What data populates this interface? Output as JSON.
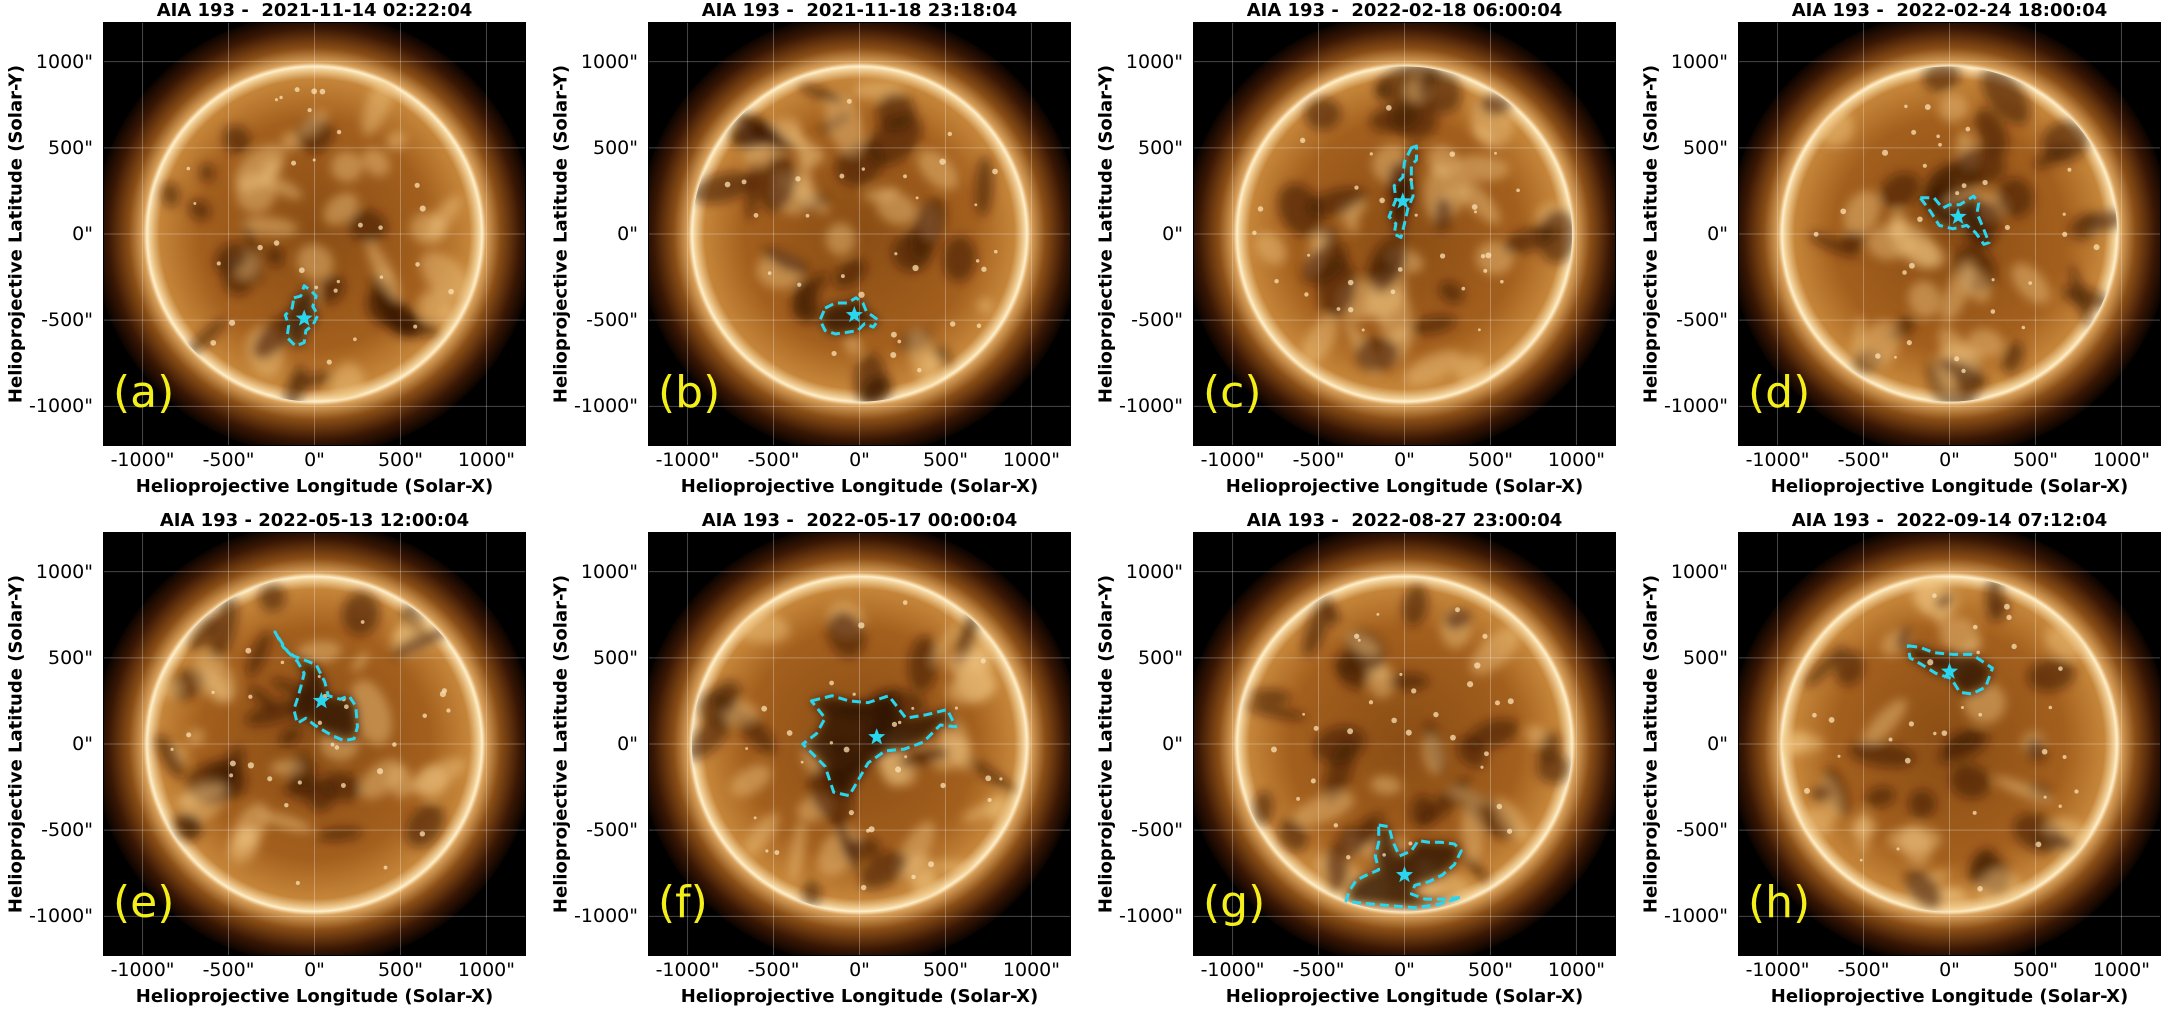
{
  "figure": {
    "ylabel": "Helioprojective Latitude (Solar-Y)",
    "xlabel": "Helioprojective Longitude (Solar-X)",
    "xticks": [
      "-1000\"",
      "-500\"",
      "0\"",
      "500\"",
      "1000\""
    ],
    "yticks": [
      "1000\"",
      "500\"",
      "0\"",
      "-500\"",
      "-1000\""
    ],
    "tick_values": [
      -1000,
      -500,
      0,
      500,
      1000
    ],
    "axis_range": [
      -1230,
      1230
    ],
    "sun_radius_arcsec": 975,
    "colors": {
      "contour": "#29d6f0",
      "panel_letter": "#f4ef18",
      "sun_bright": "#f6d9a6",
      "sun_mid": "#b06c24",
      "sun_dark": "#2a1000"
    },
    "panels": [
      {
        "id": "a",
        "title": "AIA 193 -  2021-11-14 02:22:04",
        "letter": "(a)",
        "star": [
          -60,
          -490
        ],
        "contour": [
          [
            -120,
            -370
          ],
          [
            -80,
            -360
          ],
          [
            -60,
            -300
          ],
          [
            -20,
            -330
          ],
          [
            10,
            -360
          ],
          [
            -10,
            -420
          ],
          [
            20,
            -470
          ],
          [
            -10,
            -530
          ],
          [
            -50,
            -560
          ],
          [
            -60,
            -630
          ],
          [
            -110,
            -650
          ],
          [
            -160,
            -600
          ],
          [
            -150,
            -530
          ],
          [
            -170,
            -470
          ],
          [
            -130,
            -430
          ],
          [
            -120,
            -370
          ]
        ]
      },
      {
        "id": "b",
        "title": "AIA 193 -  2021-11-18 23:18:04",
        "letter": "(b)",
        "star": [
          -30,
          -470
        ],
        "contour": [
          [
            -200,
            -430
          ],
          [
            -140,
            -400
          ],
          [
            -70,
            -400
          ],
          [
            -20,
            -370
          ],
          [
            20,
            -400
          ],
          [
            40,
            -450
          ],
          [
            110,
            -500
          ],
          [
            80,
            -540
          ],
          [
            30,
            -520
          ],
          [
            -10,
            -560
          ],
          [
            -70,
            -570
          ],
          [
            -140,
            -580
          ],
          [
            -200,
            -560
          ],
          [
            -230,
            -500
          ],
          [
            -200,
            -430
          ]
        ]
      },
      {
        "id": "c",
        "title": "AIA 193 -  2022-02-18 06:00:04",
        "letter": "(c)",
        "star": [
          -10,
          190
        ],
        "contour": [
          [
            40,
            500
          ],
          [
            70,
            510
          ],
          [
            70,
            430
          ],
          [
            40,
            400
          ],
          [
            40,
            300
          ],
          [
            50,
            220
          ],
          [
            20,
            150
          ],
          [
            0,
            60
          ],
          [
            -20,
            -20
          ],
          [
            -60,
            0
          ],
          [
            -50,
            60
          ],
          [
            -90,
            100
          ],
          [
            -50,
            200
          ],
          [
            -60,
            280
          ],
          [
            -10,
            330
          ],
          [
            0,
            420
          ],
          [
            40,
            500
          ]
        ]
      },
      {
        "id": "d",
        "title": "AIA 193 -  2022-02-24 18:00:04",
        "letter": "(d)",
        "star": [
          50,
          100
        ],
        "contour": [
          [
            -170,
            210
          ],
          [
            -90,
            210
          ],
          [
            -40,
            150
          ],
          [
            0,
            170
          ],
          [
            60,
            170
          ],
          [
            140,
            220
          ],
          [
            170,
            180
          ],
          [
            160,
            120
          ],
          [
            190,
            50
          ],
          [
            230,
            -50
          ],
          [
            200,
            -60
          ],
          [
            150,
            10
          ],
          [
            100,
            50
          ],
          [
            20,
            30
          ],
          [
            -60,
            50
          ],
          [
            -110,
            130
          ],
          [
            -170,
            210
          ]
        ]
      },
      {
        "id": "e",
        "title": "AIA 193 - 2022-05-13 12:00:04",
        "letter": "(e)",
        "star": [
          40,
          250
        ],
        "contour": [
          [
            -230,
            650
          ],
          [
            -180,
            560
          ],
          [
            -120,
            510
          ],
          [
            -40,
            480
          ],
          [
            10,
            460
          ],
          [
            60,
            360
          ],
          [
            80,
            280
          ],
          [
            150,
            260
          ],
          [
            200,
            280
          ],
          [
            240,
            220
          ],
          [
            250,
            100
          ],
          [
            230,
            30
          ],
          [
            170,
            20
          ],
          [
            100,
            50
          ],
          [
            50,
            80
          ],
          [
            0,
            110
          ],
          [
            -50,
            150
          ],
          [
            -100,
            120
          ],
          [
            -120,
            200
          ],
          [
            -100,
            260
          ],
          [
            -80,
            330
          ],
          [
            -60,
            410
          ],
          [
            -100,
            480
          ],
          [
            -160,
            540
          ],
          [
            -230,
            650
          ]
        ]
      },
      {
        "id": "f",
        "title": "AIA 193 -  2022-05-17 00:00:04",
        "letter": "(f)",
        "star": [
          100,
          40
        ],
        "contour": [
          [
            -280,
            250
          ],
          [
            -160,
            280
          ],
          [
            -60,
            250
          ],
          [
            50,
            240
          ],
          [
            170,
            280
          ],
          [
            270,
            150
          ],
          [
            390,
            170
          ],
          [
            510,
            200
          ],
          [
            560,
            100
          ],
          [
            470,
            110
          ],
          [
            370,
            10
          ],
          [
            260,
            -30
          ],
          [
            150,
            -40
          ],
          [
            50,
            -110
          ],
          [
            -60,
            -300
          ],
          [
            -150,
            -280
          ],
          [
            -200,
            -130
          ],
          [
            -280,
            -50
          ],
          [
            -330,
            0
          ],
          [
            -250,
            60
          ],
          [
            -200,
            150
          ],
          [
            -280,
            250
          ]
        ]
      },
      {
        "id": "g",
        "title": "AIA 193 -  2022-08-27 23:00:04",
        "letter": "(g)",
        "star": [
          0,
          -760
        ],
        "contour": [
          [
            -150,
            -470
          ],
          [
            -90,
            -480
          ],
          [
            -70,
            -560
          ],
          [
            -30,
            -650
          ],
          [
            40,
            -620
          ],
          [
            80,
            -560
          ],
          [
            140,
            -570
          ],
          [
            210,
            -570
          ],
          [
            290,
            -580
          ],
          [
            330,
            -620
          ],
          [
            290,
            -700
          ],
          [
            220,
            -760
          ],
          [
            140,
            -800
          ],
          [
            60,
            -820
          ],
          [
            40,
            -870
          ],
          [
            120,
            -900
          ],
          [
            240,
            -900
          ],
          [
            330,
            -890
          ],
          [
            200,
            -930
          ],
          [
            60,
            -950
          ],
          [
            -60,
            -940
          ],
          [
            -180,
            -930
          ],
          [
            -280,
            -920
          ],
          [
            -340,
            -910
          ],
          [
            -320,
            -850
          ],
          [
            -280,
            -790
          ],
          [
            -220,
            -760
          ],
          [
            -150,
            -730
          ],
          [
            -170,
            -650
          ],
          [
            -150,
            -570
          ],
          [
            -150,
            -470
          ]
        ]
      },
      {
        "id": "h",
        "title": "AIA 193 -  2022-09-14 07:12:04",
        "letter": "(h)",
        "star": [
          0,
          420
        ],
        "contour": [
          [
            -240,
            570
          ],
          [
            -170,
            560
          ],
          [
            -90,
            530
          ],
          [
            20,
            520
          ],
          [
            130,
            520
          ],
          [
            250,
            440
          ],
          [
            210,
            330
          ],
          [
            130,
            290
          ],
          [
            60,
            300
          ],
          [
            10,
            380
          ],
          [
            -80,
            410
          ],
          [
            -160,
            460
          ],
          [
            -230,
            500
          ],
          [
            -240,
            570
          ]
        ]
      }
    ]
  }
}
